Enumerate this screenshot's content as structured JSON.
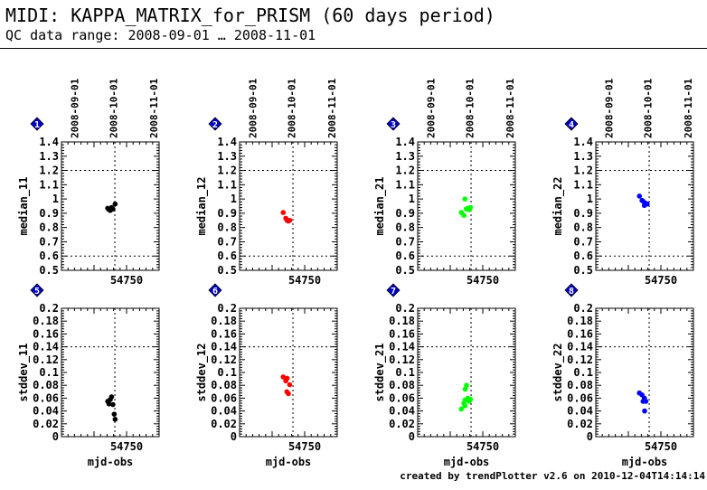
{
  "header": {
    "title": "MIDI: KAPPA_MATRIX_for_PRISM (60 days period)",
    "subtitle": "QC data range: 2008-09-01 … 2008-11-01"
  },
  "footer": "created by trendPlotter v2.6 on 2010-12-04T14:14:14",
  "colors": {
    "black": "#000000",
    "red": "#ff0000",
    "green": "#00ff00",
    "blue": "#0000ff",
    "badge": "#0000cc"
  },
  "chart_data": [
    {
      "type": "scatter",
      "index": "1",
      "ylabel": "median_11",
      "xlabel": "",
      "ylim": [
        0.5,
        1.4
      ],
      "yticks": [
        "0.5",
        "0.6",
        "0.7",
        "0.8",
        "0.9",
        "1",
        "1.1",
        "1.2",
        "1.3",
        "1.4"
      ],
      "ref_lines": [
        0.6,
        1.2
      ],
      "x_tick_label": "54750",
      "date_ticks": [
        "2008-09-01",
        "2008-10-01",
        "2008-11-01"
      ],
      "color": "#000000",
      "x": [
        54735.5,
        54736.5,
        54737.5,
        54738.5,
        54739.5,
        54741.2
      ],
      "y": [
        0.935,
        0.925,
        0.92,
        0.94,
        0.93,
        0.965
      ]
    },
    {
      "type": "scatter",
      "index": "2",
      "ylabel": "median_12",
      "xlabel": "",
      "ylim": [
        0.5,
        1.4
      ],
      "yticks": [
        "0.5",
        "0.6",
        "0.7",
        "0.8",
        "0.9",
        "1",
        "1.1",
        "1.2",
        "1.3",
        "1.4"
      ],
      "ref_lines": [
        0.6,
        1.2
      ],
      "x_tick_label": "54750",
      "date_ticks": [
        "2008-09-01",
        "2008-10-01",
        "2008-11-01"
      ],
      "color": "#ff0000",
      "x": [
        54733.5,
        54735.5,
        54736.5,
        54737.5,
        54738.5
      ],
      "y": [
        0.905,
        0.865,
        0.85,
        0.845,
        0.85
      ]
    },
    {
      "type": "scatter",
      "index": "3",
      "ylabel": "median_21",
      "xlabel": "",
      "ylim": [
        0.5,
        1.4
      ],
      "yticks": [
        "0.5",
        "0.6",
        "0.7",
        "0.8",
        "0.9",
        "1",
        "1.1",
        "1.2",
        "1.3",
        "1.4"
      ],
      "ref_lines": [
        0.6,
        1.2
      ],
      "x_tick_label": "54750",
      "date_ticks": [
        "2008-09-01",
        "2008-10-01",
        "2008-11-01"
      ],
      "color": "#00ff00",
      "x": [
        54733.5,
        54735.5,
        54736.3,
        54737.3,
        54738.5,
        54739.5,
        54740.5
      ],
      "y": [
        0.905,
        0.885,
        1.0,
        0.93,
        0.935,
        0.925,
        0.94
      ]
    },
    {
      "type": "scatter",
      "index": "4",
      "ylabel": "median_22",
      "xlabel": "",
      "ylim": [
        0.5,
        1.4
      ],
      "yticks": [
        "0.5",
        "0.6",
        "0.7",
        "0.8",
        "0.9",
        "1",
        "1.1",
        "1.2",
        "1.3",
        "1.4"
      ],
      "ref_lines": [
        0.6,
        1.2
      ],
      "x_tick_label": "54750",
      "date_ticks": [
        "2008-09-01",
        "2008-10-01",
        "2008-11-01"
      ],
      "color": "#0000ff",
      "x": [
        54733.5,
        54735.5,
        54736.3,
        54737.3,
        54738.3,
        54739.5
      ],
      "y": [
        1.02,
        0.99,
        0.985,
        0.955,
        0.97,
        0.965
      ]
    },
    {
      "type": "scatter",
      "index": "5",
      "ylabel": "stddev_11",
      "xlabel": "mjd-obs",
      "ylim": [
        0,
        0.2
      ],
      "yticks": [
        "0",
        "0.02",
        "0.04",
        "0.06",
        "0.08",
        "0.1",
        "0.12",
        "0.14",
        "0.16",
        "0.18",
        "0.2"
      ],
      "ref_lines": [
        0.14
      ],
      "x_tick_label": "54750",
      "date_ticks": [],
      "color": "#000000",
      "x": [
        54735.5,
        54736.5,
        54737.5,
        54738.5,
        54739.5,
        54740.5,
        54741.2
      ],
      "y": [
        0.055,
        0.051,
        0.058,
        0.062,
        0.05,
        0.035,
        0.027
      ]
    },
    {
      "type": "scatter",
      "index": "6",
      "ylabel": "stddev_12",
      "xlabel": "mjd-obs",
      "ylim": [
        0,
        0.2
      ],
      "yticks": [
        "0",
        "0.02",
        "0.04",
        "0.06",
        "0.08",
        "0.1",
        "0.12",
        "0.14",
        "0.16",
        "0.18",
        "0.2"
      ],
      "ref_lines": [
        0.14
      ],
      "x_tick_label": "54750",
      "date_ticks": [],
      "color": "#ff0000",
      "x": [
        54733.5,
        54735.5,
        54736.5,
        54736.3,
        54737.5,
        54738.5
      ],
      "y": [
        0.093,
        0.087,
        0.091,
        0.07,
        0.067,
        0.081
      ]
    },
    {
      "type": "scatter",
      "index": "7",
      "ylabel": "stddev_21",
      "xlabel": "mjd-obs",
      "ylim": [
        0,
        0.2
      ],
      "yticks": [
        "0",
        "0.02",
        "0.04",
        "0.06",
        "0.08",
        "0.1",
        "0.12",
        "0.14",
        "0.16",
        "0.18",
        "0.2"
      ],
      "ref_lines": [
        0.14
      ],
      "x_tick_label": "54750",
      "date_ticks": [],
      "color": "#00ff00",
      "x": [
        54733.5,
        54735.5,
        54736.3,
        54736.5,
        54737.5,
        54738.5,
        54739.5,
        54740.5,
        54736.3
      ],
      "y": [
        0.043,
        0.052,
        0.057,
        0.074,
        0.08,
        0.06,
        0.055,
        0.058,
        0.048
      ]
    },
    {
      "type": "scatter",
      "index": "8",
      "ylabel": "stddev_22",
      "xlabel": "mjd-obs",
      "ylim": [
        0,
        0.2
      ],
      "yticks": [
        "0",
        "0.02",
        "0.04",
        "0.06",
        "0.08",
        "0.1",
        "0.12",
        "0.14",
        "0.16",
        "0.18",
        "0.2"
      ],
      "ref_lines": [
        0.14
      ],
      "x_tick_label": "54750",
      "date_ticks": [],
      "color": "#0000ff",
      "x": [
        54733.5,
        54735.5,
        54736.3,
        54737.3,
        54737.5,
        54738.5
      ],
      "y": [
        0.068,
        0.065,
        0.055,
        0.06,
        0.04,
        0.055
      ]
    }
  ]
}
